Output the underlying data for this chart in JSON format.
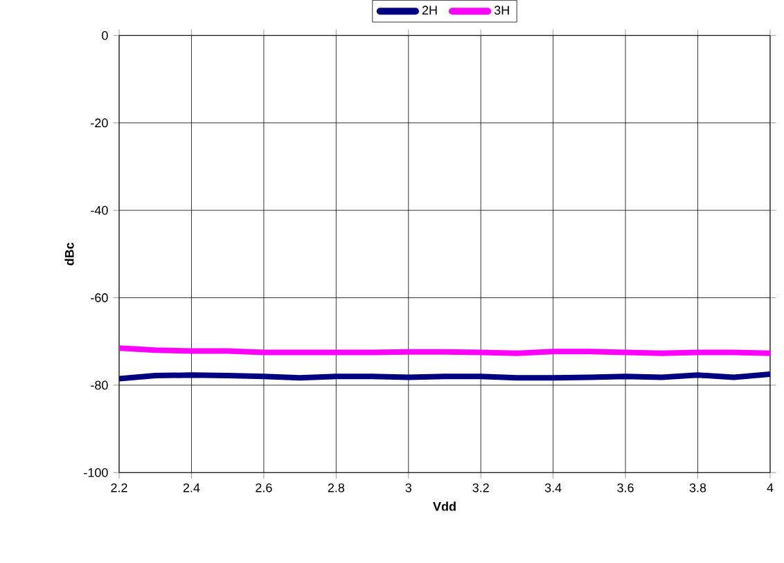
{
  "chart_data": {
    "type": "line",
    "xlabel": "Vdd",
    "ylabel": "dBc",
    "x": [
      2.2,
      2.3,
      2.4,
      2.5,
      2.6,
      2.7,
      2.8,
      2.9,
      3.0,
      3.1,
      3.2,
      3.3,
      3.4,
      3.5,
      3.6,
      3.7,
      3.8,
      3.9,
      4.0
    ],
    "series": [
      {
        "name": "2H",
        "color": "#000080",
        "values": [
          -78.5,
          -77.8,
          -77.7,
          -77.8,
          -78,
          -78.3,
          -78,
          -78,
          -78.2,
          -78,
          -78,
          -78.3,
          -78.3,
          -78.2,
          -78,
          -78.2,
          -77.7,
          -78.2,
          -77.5
        ]
      },
      {
        "name": "3H",
        "color": "#ff00ff",
        "values": [
          -71.5,
          -72,
          -72.2,
          -72.2,
          -72.5,
          -72.5,
          -72.5,
          -72.5,
          -72.4,
          -72.4,
          -72.5,
          -72.7,
          -72.3,
          -72.3,
          -72.5,
          -72.7,
          -72.5,
          -72.5,
          -72.7
        ]
      }
    ],
    "xlim": [
      2.2,
      4
    ],
    "xticks": [
      2.2,
      2.4,
      2.6,
      2.8,
      3,
      3.2,
      3.4,
      3.6,
      3.8,
      4
    ],
    "ylim": [
      -100,
      0
    ],
    "yticks": [
      -100,
      -80,
      -60,
      -40,
      -20,
      0
    ],
    "grid": true,
    "legend": "top",
    "marker": "none",
    "line_style": "solid"
  }
}
